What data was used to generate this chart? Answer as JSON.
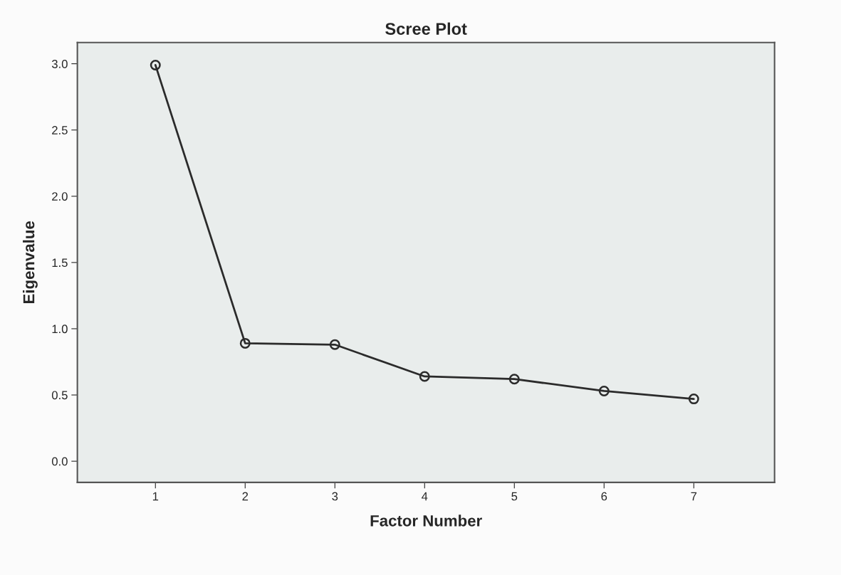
{
  "chart_data": {
    "type": "line",
    "title": "Scree Plot",
    "xlabel": "Factor Number",
    "ylabel": "Eigenvalue",
    "x": [
      1,
      2,
      3,
      4,
      5,
      6,
      7
    ],
    "series": [
      {
        "color": "#2b2b2b",
        "values": [
          2.99,
          0.89,
          0.88,
          0.64,
          0.62,
          0.53,
          0.47
        ]
      }
    ],
    "xlim": [
      0.13,
      7.9
    ],
    "xticks": [
      1,
      2,
      3,
      4,
      5,
      6,
      7
    ],
    "ylim": [
      -0.16,
      3.16
    ],
    "yticks": [
      {
        "value": 0,
        "label": "0.0"
      },
      {
        "value": 0.5,
        "label": "0.5"
      },
      {
        "value": 1,
        "label": "1.0"
      },
      {
        "value": 1.5,
        "label": "1.5"
      },
      {
        "value": 2,
        "label": "2.0"
      },
      {
        "value": 2.5,
        "label": "2.5"
      },
      {
        "value": 3,
        "label": "3.0"
      }
    ],
    "marker": "circle",
    "line_style": "solid",
    "grid": false
  }
}
